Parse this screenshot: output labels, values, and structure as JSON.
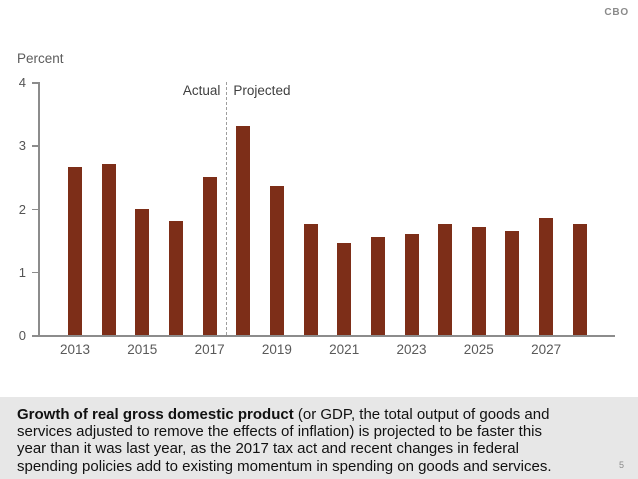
{
  "meta": {
    "brand": "CBO",
    "page_number": "5"
  },
  "chart": {
    "unit_label": "Percent",
    "actual_label": "Actual",
    "projected_label": "Projected"
  },
  "chart_data": {
    "type": "bar",
    "title": "Growth of Real Gross Domestic Product",
    "xlabel": "",
    "ylabel": "Percent",
    "categories": [
      2013,
      2014,
      2015,
      2016,
      2017,
      2018,
      2019,
      2020,
      2021,
      2022,
      2023,
      2024,
      2025,
      2026,
      2027,
      2028
    ],
    "values": [
      2.65,
      2.7,
      2.0,
      1.8,
      2.5,
      3.3,
      2.35,
      1.75,
      1.45,
      1.55,
      1.6,
      1.75,
      1.7,
      1.65,
      1.85,
      1.75
    ],
    "ylim": [
      0,
      4
    ],
    "yticks": [
      0,
      1,
      2,
      3,
      4
    ],
    "xtick_labels": [
      "2013",
      "2015",
      "2017",
      "2019",
      "2021",
      "2023",
      "2025",
      "2027"
    ],
    "divider_between": [
      2017,
      2018
    ],
    "annotations": [
      "Actual",
      "Projected"
    ],
    "bar_color": "#7D2E18",
    "axis_color": "#8c8c8c",
    "grid": false,
    "legend": "none"
  },
  "caption": {
    "lines": [
      {
        "bold": "Growth of real gross domestic product",
        "text": " (or GDP, the total output of goods and"
      },
      {
        "bold": "",
        "text": "services adjusted to remove the effects of inflation) is projected to be faster this"
      },
      {
        "bold": "",
        "text": "year than it was last year, as the 2017 tax act and recent changes in federal"
      },
      {
        "bold": "",
        "text": "spending policies add to existing momentum in spending on goods and services."
      }
    ]
  }
}
